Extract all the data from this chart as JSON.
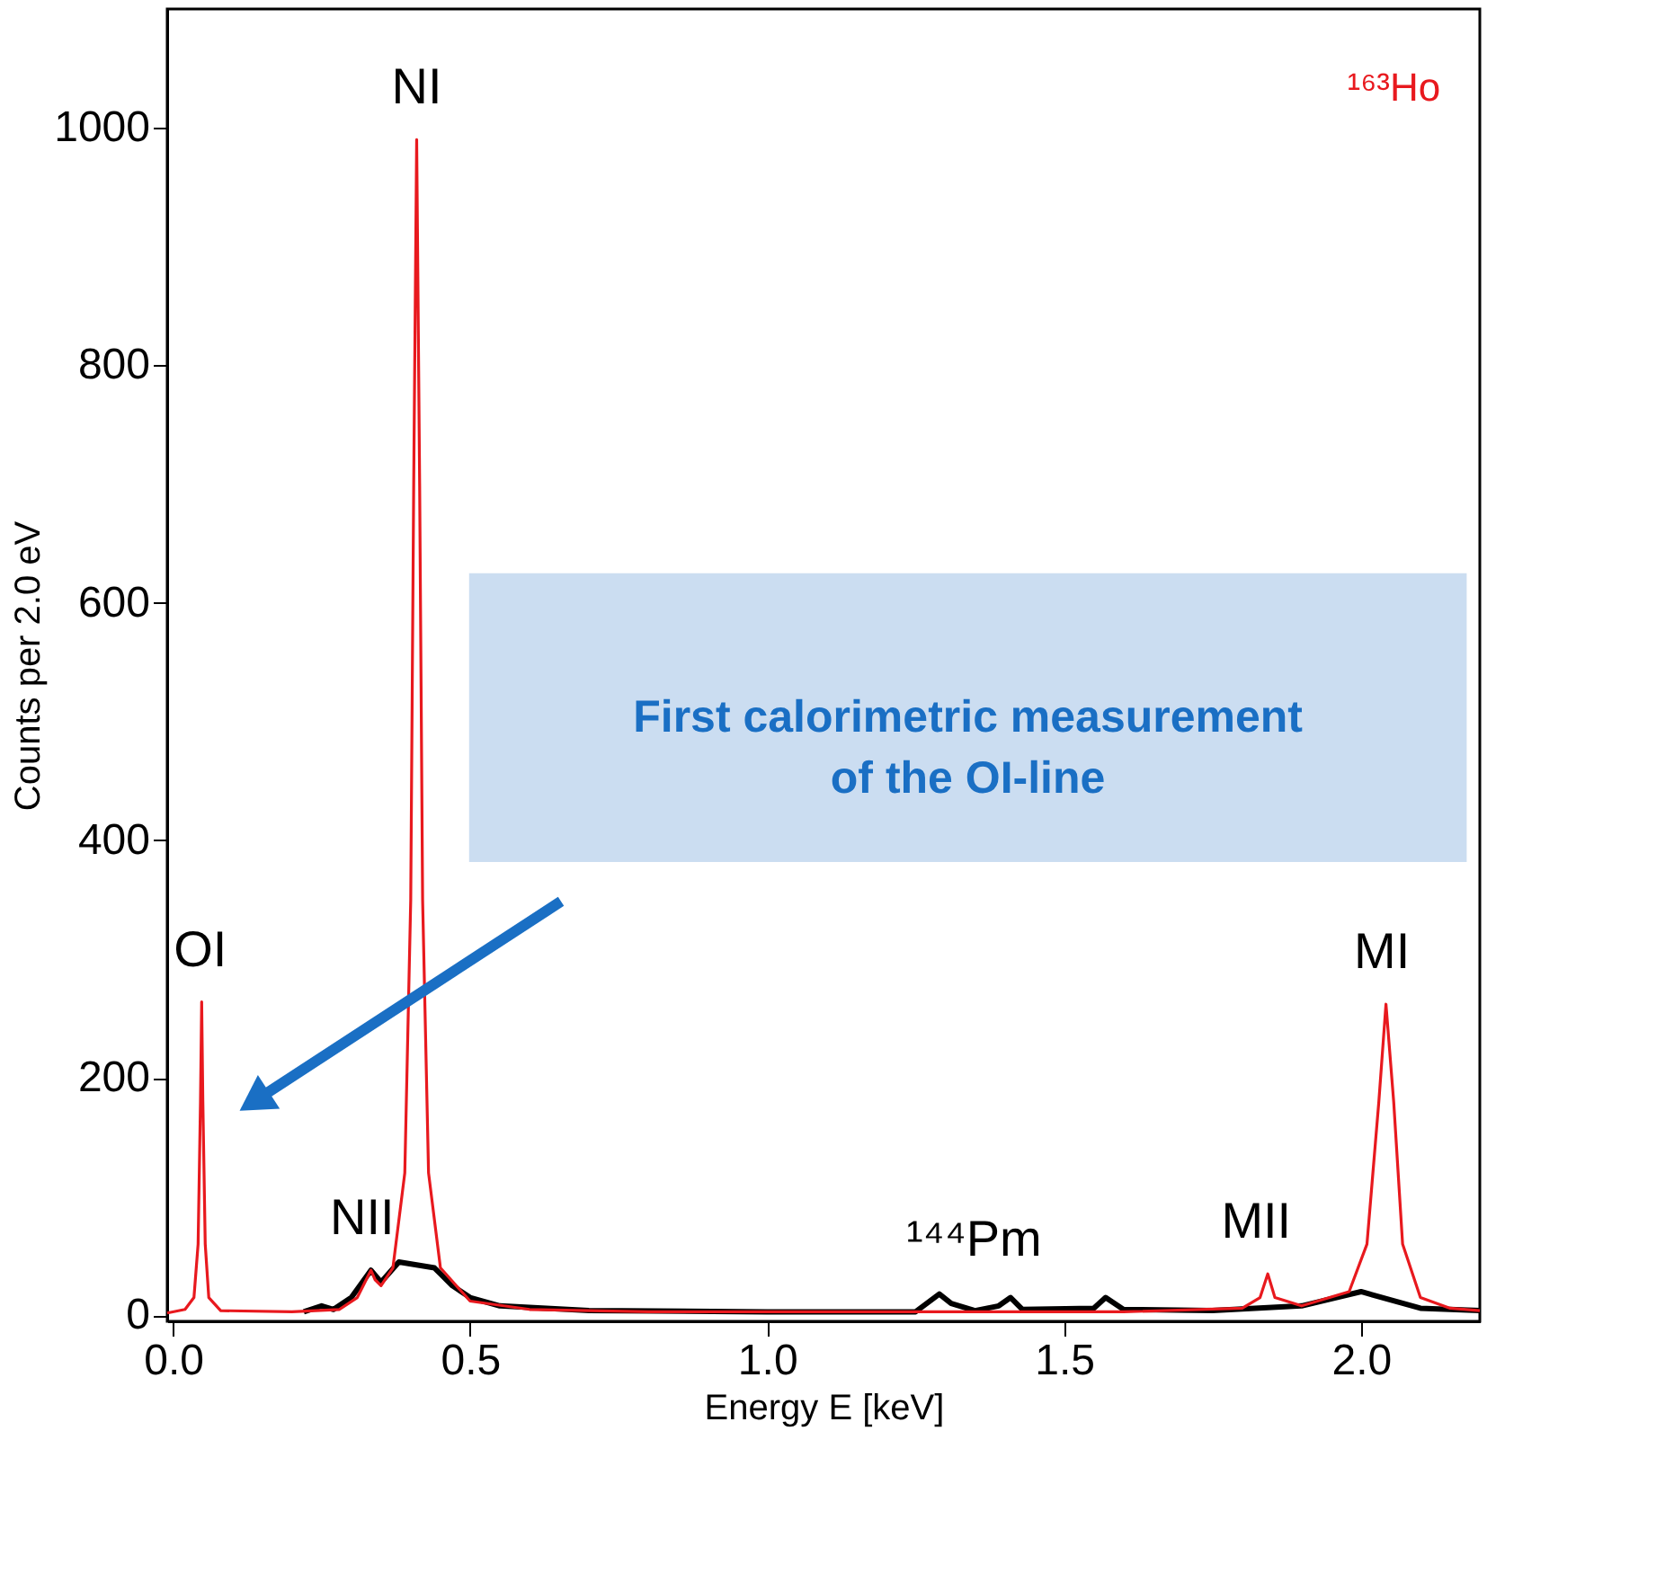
{
  "chart_data": {
    "type": "line",
    "xlabel": "Energy E [keV]",
    "ylabel": "Counts per 2.0 eV",
    "xlim": [
      -0.01,
      2.2
    ],
    "ylim": [
      -5,
      1100
    ],
    "xticks": [
      {
        "value": 0,
        "label": "0.0"
      },
      {
        "value": 0.5,
        "label": "0.5"
      },
      {
        "value": 1,
        "label": "1.0"
      },
      {
        "value": 1.5,
        "label": "1.5"
      },
      {
        "value": 2,
        "label": "2.0"
      }
    ],
    "yticks": [
      0,
      200,
      400,
      600,
      800,
      1000
    ],
    "grid": false,
    "marker": "none",
    "line_style": "solid",
    "series": [
      {
        "color": "#000000",
        "x": [
          0.22,
          0.25,
          0.27,
          0.3,
          0.333,
          0.35,
          0.38,
          0.44,
          0.45,
          0.47,
          0.5,
          0.55,
          0.7,
          1.0,
          1.25,
          1.29,
          1.31,
          1.35,
          1.39,
          1.41,
          1.43,
          1.55,
          1.57,
          1.6,
          1.75,
          1.9,
          2.0,
          2.1,
          2.2
        ],
        "values": [
          3,
          8,
          5,
          15,
          38,
          28,
          45,
          40,
          35,
          25,
          15,
          8,
          4,
          3,
          3,
          18,
          10,
          4,
          8,
          15,
          5,
          6,
          15,
          5,
          4,
          8,
          20,
          6,
          4
        ]
      },
      {
        "color": "#e8191e",
        "x": [
          -0.01,
          0.02,
          0.035,
          0.042,
          0.046,
          0.048,
          0.05,
          0.054,
          0.06,
          0.08,
          0.2,
          0.28,
          0.31,
          0.325,
          0.333,
          0.34,
          0.35,
          0.37,
          0.39,
          0.4,
          0.405,
          0.41,
          0.415,
          0.42,
          0.43,
          0.45,
          0.5,
          0.6,
          0.8,
          1.6,
          1.8,
          1.83,
          1.843,
          1.855,
          1.9,
          1.98,
          2.01,
          2.03,
          2.042,
          2.055,
          2.07,
          2.1,
          2.15,
          2.2
        ],
        "values": [
          2,
          5,
          15,
          60,
          180,
          264,
          180,
          60,
          15,
          4,
          3,
          5,
          15,
          30,
          38,
          30,
          25,
          40,
          120,
          350,
          700,
          990,
          700,
          350,
          120,
          40,
          12,
          5,
          3,
          3,
          6,
          15,
          35,
          15,
          8,
          20,
          60,
          180,
          262,
          180,
          60,
          15,
          6,
          4
        ]
      }
    ],
    "annotations": [
      {
        "text": "OI",
        "x": 0.048,
        "y": 264
      },
      {
        "text": "NI",
        "x": 0.41,
        "y": 990
      },
      {
        "text": "NII",
        "x": 0.33,
        "y": 38
      },
      {
        "text": "¹⁴⁴Pm",
        "x": 1.42,
        "y": 20
      },
      {
        "text": "MII",
        "x": 1.84,
        "y": 35
      },
      {
        "text": "MI",
        "x": 2.04,
        "y": 262
      },
      "¹⁶³Ho",
      "First calorimetric measurement of the OI-line"
    ]
  }
}
